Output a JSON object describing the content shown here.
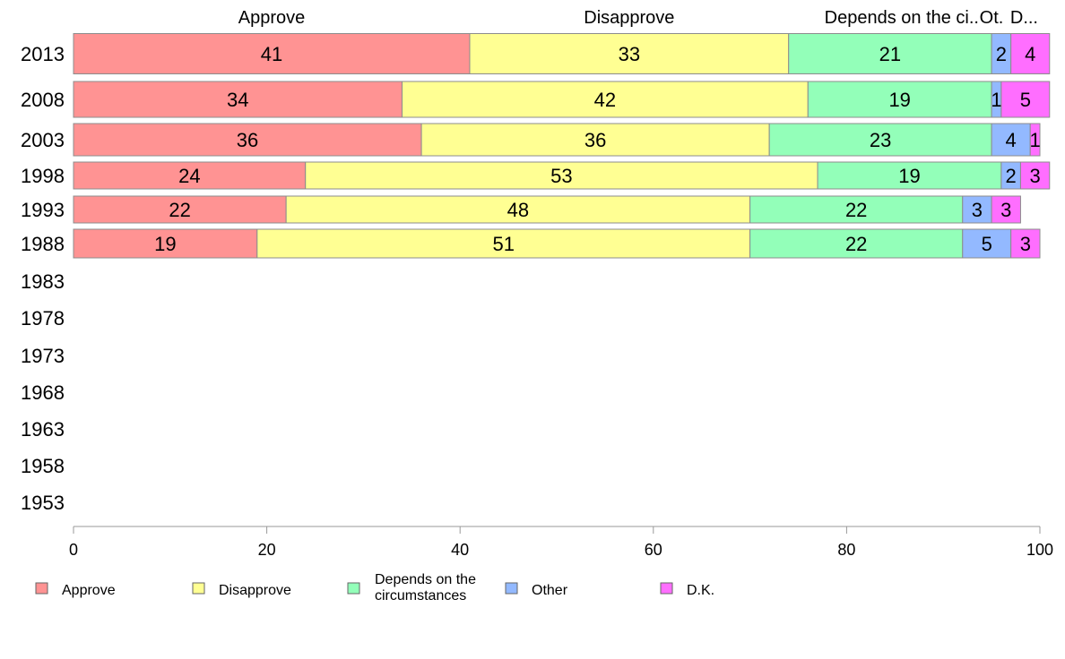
{
  "chart_data": {
    "type": "bar",
    "orientation": "horizontal",
    "stacked": true,
    "categories": [
      "2013",
      "2008",
      "2003",
      "1998",
      "1993",
      "1988",
      "1983",
      "1978",
      "1973",
      "1968",
      "1963",
      "1958",
      "1953"
    ],
    "series": [
      {
        "name": "Approve",
        "color": "#ff9393",
        "values": [
          41,
          34,
          36,
          24,
          22,
          19,
          null,
          null,
          null,
          null,
          null,
          null,
          null
        ]
      },
      {
        "name": "Disapprove",
        "color": "#ffff93",
        "values": [
          33,
          42,
          36,
          53,
          48,
          51,
          null,
          null,
          null,
          null,
          null,
          null,
          null
        ]
      },
      {
        "name": "Depends on the circumstances",
        "color": "#93ffb9",
        "values": [
          21,
          19,
          23,
          19,
          22,
          22,
          null,
          null,
          null,
          null,
          null,
          null,
          null
        ]
      },
      {
        "name": "Other",
        "color": "#93b9ff",
        "values": [
          2,
          1,
          4,
          2,
          3,
          5,
          null,
          null,
          null,
          null,
          null,
          null,
          null
        ]
      },
      {
        "name": "D.K.",
        "color": "#ff6eff",
        "values": [
          4,
          5,
          1,
          3,
          3,
          3,
          null,
          null,
          null,
          null,
          null,
          null,
          null
        ]
      }
    ],
    "header_labels": [
      "Approve",
      "Disapprove",
      "Depends on the ci..",
      "Ot.",
      "D..."
    ],
    "legend_labels": [
      "Approve",
      "Disapprove",
      "Depends on the circumstances",
      "Other",
      "D.K."
    ],
    "xlim": [
      0,
      100
    ],
    "xticks": [
      0,
      20,
      40,
      60,
      80,
      100
    ],
    "legend_position": "bottom",
    "grid": false
  }
}
